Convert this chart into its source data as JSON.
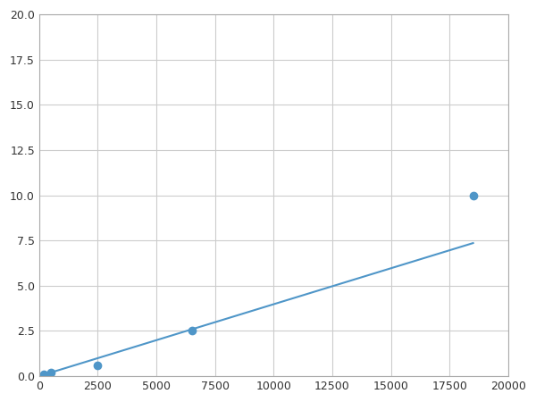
{
  "x": [
    200,
    500,
    2500,
    6500,
    18500
  ],
  "y": [
    0.1,
    0.2,
    0.6,
    2.5,
    10.0
  ],
  "line_color": "#4f96c8",
  "marker_color": "#4f96c8",
  "marker_size": 6,
  "line_width": 1.5,
  "xlim": [
    0,
    20000
  ],
  "ylim": [
    0,
    20.0
  ],
  "xticks": [
    0,
    2500,
    5000,
    7500,
    10000,
    12500,
    15000,
    17500,
    20000
  ],
  "yticks": [
    0.0,
    2.5,
    5.0,
    7.5,
    10.0,
    12.5,
    15.0,
    17.5,
    20.0
  ],
  "grid_color": "#cccccc",
  "bg_color": "#ffffff",
  "fig_bg_color": "#ffffff",
  "figsize": [
    6.0,
    4.5
  ],
  "dpi": 100
}
